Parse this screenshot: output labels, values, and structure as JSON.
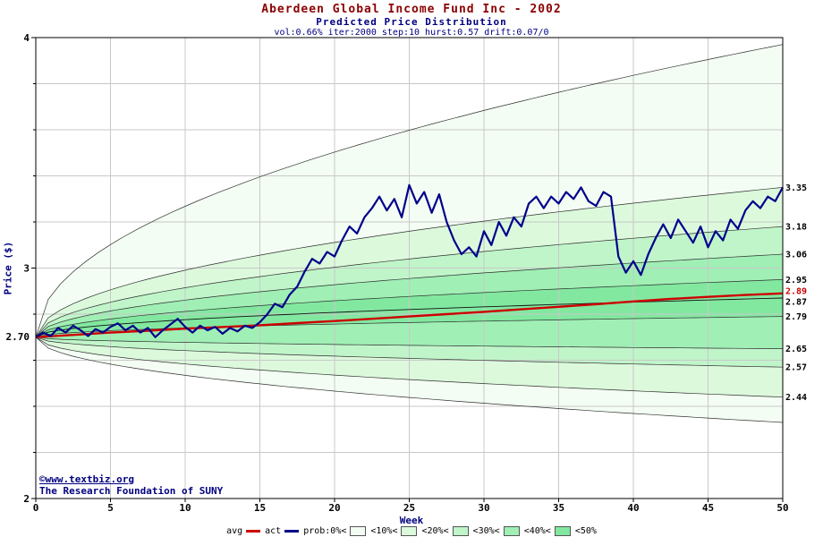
{
  "header": {
    "title": "Aberdeen Global Income Fund Inc - 2002",
    "subtitle": "Predicted Price Distribution",
    "params": "vol:0.66% iter:2000 step:10 hurst:0.57 drift:0.07/0"
  },
  "axes": {
    "x_label": "Week",
    "y_label": "Price ($)",
    "start_label": "2.70"
  },
  "watermark": {
    "line1": "©www.textbiz.org",
    "line2": "The Research Foundation of SUNY"
  },
  "colors": {
    "navy": "#000080",
    "title_red": "#8b0000",
    "grid": "#c8c8c8",
    "boundary": "#2f2f2f",
    "frame": "#000000",
    "tick_text": "#000000"
  },
  "legend": {
    "items": [
      {
        "label": "avg",
        "marker": "line",
        "color": "#cc0000"
      },
      {
        "label": "act",
        "marker": "line",
        "color": "#00008b"
      },
      {
        "label": "prob:0%<",
        "marker": "swatch",
        "swatch_index": 0
      },
      {
        "label": "<10%<",
        "marker": "swatch",
        "swatch_index": 1
      },
      {
        "label": "<20%<",
        "marker": "swatch",
        "swatch_index": 2
      },
      {
        "label": "<30%<",
        "marker": "swatch",
        "swatch_index": 3
      },
      {
        "label": "<40%<",
        "marker": "swatch",
        "swatch_index": 4
      },
      {
        "label": "<50%",
        "marker": "none"
      }
    ]
  },
  "chart_data": {
    "type": "line",
    "subtype": "fan-distribution-with-actual",
    "title": "Aberdeen Global Income Fund Inc - 2002",
    "subtitle": "Predicted Price Distribution",
    "xlabel": "Week",
    "ylabel": "Price ($)",
    "xlim": [
      0,
      50
    ],
    "ylim": [
      2,
      4
    ],
    "x_ticks": [
      0,
      5,
      10,
      15,
      20,
      25,
      30,
      35,
      40,
      45,
      50
    ],
    "y_ticks": [
      2,
      3,
      4
    ],
    "y_minor_step": 0.2,
    "grid": true,
    "legend_position": "bottom",
    "start_price": 2.7,
    "growth": "sqrt",
    "bands": {
      "upper_ends": [
        3.97,
        3.35,
        3.18,
        3.06,
        2.95
      ],
      "lower_ends": [
        2.33,
        2.44,
        2.57,
        2.65,
        2.79
      ],
      "median_end": 2.87,
      "colors": [
        "#f3fdf3",
        "#dcf9dc",
        "#c0f5ca",
        "#a0efb5",
        "#82e8a0"
      ]
    },
    "right_labels": [
      {
        "text": "3.35",
        "value": 3.35,
        "dy": 0,
        "color": "#000000"
      },
      {
        "text": "3.18",
        "value": 3.18,
        "dy": 0,
        "color": "#000000"
      },
      {
        "text": "3.06",
        "value": 3.06,
        "dy": 0,
        "color": "#000000"
      },
      {
        "text": "2.95",
        "value": 2.95,
        "dy": 0,
        "color": "#000000"
      },
      {
        "text": "2.89",
        "value": 2.89,
        "dy": -3,
        "color": "#cc0000"
      },
      {
        "text": "2.87",
        "value": 2.87,
        "dy": 4,
        "color": "#000000"
      },
      {
        "text": "2.79",
        "value": 2.79,
        "dy": 0,
        "color": "#000000"
      },
      {
        "text": "2.65",
        "value": 2.65,
        "dy": 0,
        "color": "#000000"
      },
      {
        "text": "2.57",
        "value": 2.57,
        "dy": 0,
        "color": "#000000"
      },
      {
        "text": "2.44",
        "value": 2.44,
        "dy": 0,
        "color": "#000000"
      }
    ],
    "avg": {
      "name": "avg",
      "color": "#cc0000",
      "end_value": 2.89,
      "points": [
        [
          0,
          2.7
        ],
        [
          2.5,
          2.71
        ],
        [
          5,
          2.72
        ],
        [
          7.5,
          2.728
        ],
        [
          10,
          2.737
        ],
        [
          12.5,
          2.744
        ],
        [
          15,
          2.752
        ],
        [
          17.5,
          2.761
        ],
        [
          20,
          2.77
        ],
        [
          22.5,
          2.78
        ],
        [
          25,
          2.79
        ],
        [
          27.5,
          2.8
        ],
        [
          30,
          2.81
        ],
        [
          32.5,
          2.821
        ],
        [
          35,
          2.832
        ],
        [
          37.5,
          2.843
        ],
        [
          40,
          2.855
        ],
        [
          42.5,
          2.866
        ],
        [
          45,
          2.875
        ],
        [
          47.5,
          2.883
        ],
        [
          50,
          2.89
        ]
      ]
    },
    "actual": {
      "name": "act",
      "color": "#00008b",
      "end_value": 3.35,
      "points": [
        [
          0,
          2.7
        ],
        [
          0.5,
          2.72
        ],
        [
          1,
          2.705
        ],
        [
          1.5,
          2.74
        ],
        [
          2,
          2.72
        ],
        [
          2.5,
          2.75
        ],
        [
          3,
          2.73
        ],
        [
          3.5,
          2.705
        ],
        [
          4,
          2.735
        ],
        [
          4.5,
          2.72
        ],
        [
          5,
          2.745
        ],
        [
          5.5,
          2.76
        ],
        [
          6,
          2.73
        ],
        [
          6.5,
          2.75
        ],
        [
          7,
          2.72
        ],
        [
          7.5,
          2.74
        ],
        [
          8,
          2.7
        ],
        [
          8.5,
          2.73
        ],
        [
          9,
          2.755
        ],
        [
          9.5,
          2.78
        ],
        [
          10,
          2.745
        ],
        [
          10.5,
          2.72
        ],
        [
          11,
          2.75
        ],
        [
          11.5,
          2.73
        ],
        [
          12,
          2.745
        ],
        [
          12.5,
          2.715
        ],
        [
          13,
          2.74
        ],
        [
          13.5,
          2.725
        ],
        [
          14,
          2.75
        ],
        [
          14.5,
          2.74
        ],
        [
          15,
          2.765
        ],
        [
          15.5,
          2.8
        ],
        [
          16,
          2.845
        ],
        [
          16.5,
          2.83
        ],
        [
          17,
          2.885
        ],
        [
          17.5,
          2.92
        ],
        [
          18,
          2.985
        ],
        [
          18.5,
          3.04
        ],
        [
          19,
          3.02
        ],
        [
          19.5,
          3.07
        ],
        [
          20,
          3.05
        ],
        [
          20.5,
          3.12
        ],
        [
          21,
          3.18
        ],
        [
          21.5,
          3.15
        ],
        [
          22,
          3.22
        ],
        [
          22.5,
          3.26
        ],
        [
          23,
          3.31
        ],
        [
          23.5,
          3.25
        ],
        [
          24,
          3.3
        ],
        [
          24.5,
          3.22
        ],
        [
          25,
          3.36
        ],
        [
          25.5,
          3.28
        ],
        [
          26,
          3.33
        ],
        [
          26.5,
          3.24
        ],
        [
          27,
          3.32
        ],
        [
          27.5,
          3.2
        ],
        [
          28,
          3.12
        ],
        [
          28.5,
          3.06
        ],
        [
          29,
          3.09
        ],
        [
          29.5,
          3.05
        ],
        [
          30,
          3.16
        ],
        [
          30.5,
          3.1
        ],
        [
          31,
          3.2
        ],
        [
          31.5,
          3.14
        ],
        [
          32,
          3.22
        ],
        [
          32.5,
          3.18
        ],
        [
          33,
          3.28
        ],
        [
          33.5,
          3.31
        ],
        [
          34,
          3.26
        ],
        [
          34.5,
          3.31
        ],
        [
          35,
          3.28
        ],
        [
          35.5,
          3.33
        ],
        [
          36,
          3.3
        ],
        [
          36.5,
          3.35
        ],
        [
          37,
          3.29
        ],
        [
          37.5,
          3.27
        ],
        [
          38,
          3.33
        ],
        [
          38.5,
          3.31
        ],
        [
          39,
          3.05
        ],
        [
          39.5,
          2.98
        ],
        [
          40,
          3.03
        ],
        [
          40.5,
          2.97
        ],
        [
          41,
          3.06
        ],
        [
          41.5,
          3.13
        ],
        [
          42,
          3.19
        ],
        [
          42.5,
          3.13
        ],
        [
          43,
          3.21
        ],
        [
          43.5,
          3.16
        ],
        [
          44,
          3.11
        ],
        [
          44.5,
          3.18
        ],
        [
          45,
          3.09
        ],
        [
          45.5,
          3.16
        ],
        [
          46,
          3.12
        ],
        [
          46.5,
          3.21
        ],
        [
          47,
          3.17
        ],
        [
          47.5,
          3.25
        ],
        [
          48,
          3.29
        ],
        [
          48.5,
          3.26
        ],
        [
          49,
          3.31
        ],
        [
          49.5,
          3.29
        ],
        [
          50,
          3.35
        ]
      ]
    }
  }
}
